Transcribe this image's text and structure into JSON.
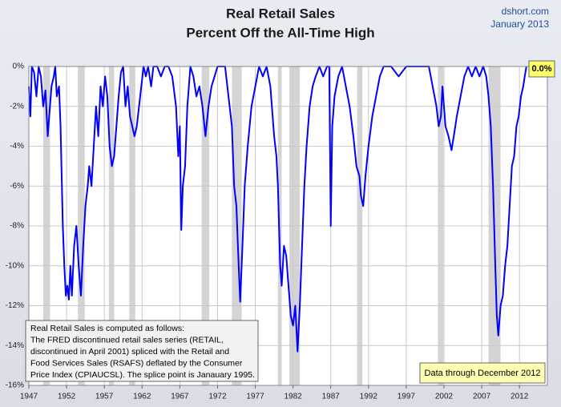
{
  "chart_data": {
    "type": "line",
    "title": "Real Retail Sales",
    "subtitle": "Percent Off the All-Time High",
    "source": "dshort.com",
    "date": "January 2013",
    "end_label": "0.0%",
    "data_note": "Data through December 2012",
    "note_lines": [
      "Real Retail Sales is computed as follows:",
      "The FRED discontinued retail sales series (RETAIL,",
      "discontinued in April 2001) spliced with the Retail and",
      "Food Services Sales (RSAFS) deflated by the Consumer",
      "Price Index (CPIAUCSL). The splice point is Janauary 1995."
    ],
    "x": [
      1947,
      1947.2,
      1947.4,
      1947.7,
      1948,
      1948.3,
      1948.6,
      1948.9,
      1949.2,
      1949.5,
      1949.8,
      1950,
      1950.3,
      1950.5,
      1950.7,
      1951,
      1951.2,
      1951.5,
      1951.7,
      1951.9,
      1952.1,
      1952.3,
      1952.5,
      1952.7,
      1953,
      1953.3,
      1953.6,
      1953.9,
      1954.2,
      1954.5,
      1954.8,
      1955,
      1955.3,
      1955.6,
      1955.9,
      1956.2,
      1956.5,
      1956.8,
      1957.1,
      1957.4,
      1957.7,
      1958,
      1958.3,
      1958.6,
      1958.9,
      1959.2,
      1959.5,
      1959.8,
      1960.1,
      1960.4,
      1960.7,
      1961,
      1961.3,
      1961.6,
      1961.9,
      1962.2,
      1962.5,
      1962.8,
      1963.2,
      1963.5,
      1964,
      1964.5,
      1965,
      1965.5,
      1966,
      1966.5,
      1966.8,
      1967,
      1967.2,
      1967.4,
      1967.7,
      1968,
      1968.4,
      1968.8,
      1969.2,
      1969.6,
      1970,
      1970.4,
      1970.8,
      1971.2,
      1971.6,
      1972,
      1972.5,
      1973,
      1973.3,
      1973.6,
      1973.9,
      1974.2,
      1974.5,
      1974.8,
      1975,
      1975.3,
      1975.6,
      1976,
      1976.5,
      1977,
      1977.5,
      1978,
      1978.5,
      1979,
      1979.5,
      1979.8,
      1980,
      1980.3,
      1980.5,
      1980.8,
      1981.1,
      1981.4,
      1981.7,
      1982,
      1982.3,
      1982.6,
      1982.9,
      1983.2,
      1983.5,
      1983.8,
      1984.2,
      1984.6,
      1985,
      1985.5,
      1986,
      1986.5,
      1986.8,
      1987,
      1987.2,
      1987.5,
      1988,
      1988.5,
      1989,
      1989.5,
      1990,
      1990.4,
      1990.8,
      1991,
      1991.3,
      1991.6,
      1992,
      1992.5,
      1993,
      1993.5,
      1994,
      1995,
      1996,
      1997,
      1998,
      1999,
      2000,
      2000.5,
      2001,
      2001.3,
      2001.6,
      2001.8,
      2002.2,
      2002.6,
      2003,
      2003.3,
      2003.7,
      2004.2,
      2004.7,
      2005.2,
      2005.7,
      2006.2,
      2006.7,
      2007.2,
      2007.6,
      2007.9,
      2008.2,
      2008.5,
      2008.8,
      2009,
      2009.2,
      2009.5,
      2009.8,
      2010.1,
      2010.4,
      2010.7,
      2011,
      2011.3,
      2011.6,
      2011.9,
      2012.2,
      2012.5,
      2012.7,
      2012.92
    ],
    "series": [
      {
        "name": "Real Retail Sales",
        "color": "#0000ff",
        "values": [
          -1,
          -2.5,
          0,
          -0.3,
          -1.5,
          0,
          -0.5,
          -2,
          -1.2,
          -3.5,
          -2,
          -1,
          -0.5,
          0,
          -1.5,
          -1,
          -3,
          -8,
          -10,
          -11.5,
          -11,
          -11.7,
          -10,
          -11.5,
          -9,
          -8,
          -10,
          -11.5,
          -9,
          -7,
          -6,
          -5,
          -6,
          -4,
          -2,
          -3.5,
          -1,
          -2,
          -0.5,
          -1.5,
          -4,
          -5,
          -4.5,
          -3,
          -1.5,
          -0.3,
          0,
          -2,
          -1,
          -2.5,
          -3,
          -3.5,
          -3,
          -2,
          -1,
          0,
          -0.5,
          0,
          -1,
          0,
          0,
          -0.5,
          0,
          0,
          -0.5,
          -2,
          -4.5,
          -3,
          -8.2,
          -6,
          -5,
          -2,
          0,
          -0.5,
          -1.5,
          -1,
          -2,
          -3.5,
          -2,
          -1,
          -0.5,
          0,
          0,
          0,
          -1,
          -2,
          -3,
          -6,
          -7,
          -10,
          -11.8,
          -9,
          -6,
          -4,
          -2,
          -1,
          0,
          -0.5,
          0,
          -1,
          -3.5,
          -4.5,
          -6,
          -10,
          -11,
          -9,
          -9.5,
          -11,
          -12.5,
          -13,
          -12,
          -14.3,
          -12,
          -9,
          -6,
          -4,
          -2,
          -1,
          -0.5,
          0,
          -0.5,
          0,
          0,
          -8,
          -3,
          -1.5,
          -0.5,
          0,
          -1,
          -2,
          -3.5,
          -5,
          -5.5,
          -6.5,
          -7,
          -5.5,
          -4,
          -2.5,
          -1.5,
          -0.5,
          0,
          0,
          -0.5,
          0,
          0,
          0,
          0,
          -1,
          -2,
          -3,
          -2.5,
          -1,
          -3,
          -3.5,
          -4.2,
          -3.5,
          -2.5,
          -1.5,
          -0.5,
          0,
          -0.5,
          0,
          -0.5,
          0,
          -0.5,
          -1.5,
          -3,
          -6,
          -10,
          -12.5,
          -13.5,
          -12,
          -11.5,
          -10,
          -9,
          -7,
          -5,
          -4.5,
          -3,
          -2.5,
          -1.5,
          -1,
          -0.5,
          0
        ]
      }
    ],
    "shaded_periods": [
      [
        1948.9,
        1949.8
      ],
      [
        1953.5,
        1954.4
      ],
      [
        1957.6,
        1958.3
      ],
      [
        1960.3,
        1961.1
      ],
      [
        1969.9,
        1970.9
      ],
      [
        1973.9,
        1975.2
      ],
      [
        1980,
        1980.5
      ],
      [
        1981.5,
        1982.9
      ],
      [
        1990.5,
        1991.2
      ],
      [
        2001.2,
        2001.9
      ],
      [
        2007.9,
        2009.5
      ]
    ],
    "shade_color": "#d4d4d4",
    "xlim": [
      1947,
      2015.7
    ],
    "ylim": [
      -16,
      0
    ],
    "xticks": [
      1947,
      1952,
      1957,
      1962,
      1967,
      1972,
      1977,
      1982,
      1987,
      1992,
      1997,
      2002,
      2007,
      2012
    ],
    "yticks": [
      {
        "value": 0,
        "label": "0%"
      },
      {
        "value": -2,
        "label": "-2%"
      },
      {
        "value": -4,
        "label": "-4%"
      },
      {
        "value": -6,
        "label": "-6%"
      },
      {
        "value": -8,
        "label": "-8%"
      },
      {
        "value": -10,
        "label": "-10%"
      },
      {
        "value": -12,
        "label": "-12%"
      },
      {
        "value": -14,
        "label": "-14%"
      },
      {
        "value": -16,
        "label": "-16%"
      }
    ],
    "grid": true
  }
}
